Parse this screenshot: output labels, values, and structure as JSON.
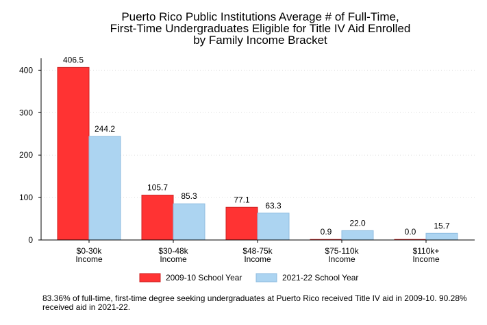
{
  "chart_data": {
    "type": "bar",
    "title_lines": [
      "Puerto Rico Public Institutions Average # of Full-Time,",
      "First-Time Undergraduates Eligible for Title IV Aid Enrolled",
      "by Family Income Bracket"
    ],
    "categories": [
      [
        "$0-30k",
        "Income"
      ],
      [
        "$30-48k",
        "Income"
      ],
      [
        "$48-75k",
        "Income"
      ],
      [
        "$75-110k",
        "Income"
      ],
      [
        "$110k+",
        "Income"
      ]
    ],
    "series": [
      {
        "name": "2009-10 School Year",
        "color": "#ff3333",
        "stroke": "#cc2020",
        "values": [
          406.5,
          105.7,
          77.1,
          0.9,
          0.0
        ],
        "labels": [
          "406.5",
          "105.7",
          "77.1",
          "0.9",
          "0.0"
        ]
      },
      {
        "name": "2021-22 School Year",
        "color": "#acd4f1",
        "stroke": "#8fbde0",
        "values": [
          244.2,
          85.3,
          63.3,
          22.0,
          15.7
        ],
        "labels": [
          "244.2",
          "85.3",
          "63.3",
          "22.0",
          "15.7"
        ]
      }
    ],
    "ylim": [
      0,
      420
    ],
    "yticks": [
      0,
      100,
      200,
      300,
      400
    ],
    "xlabel": "",
    "ylabel": "",
    "grid": true,
    "legend_position": "bottom"
  },
  "footnote": "83.36% of full-time, first-time degree seeking undergraduates at Puerto Rico received Title IV aid in 2009-10. 90.28% received aid in 2021-22."
}
